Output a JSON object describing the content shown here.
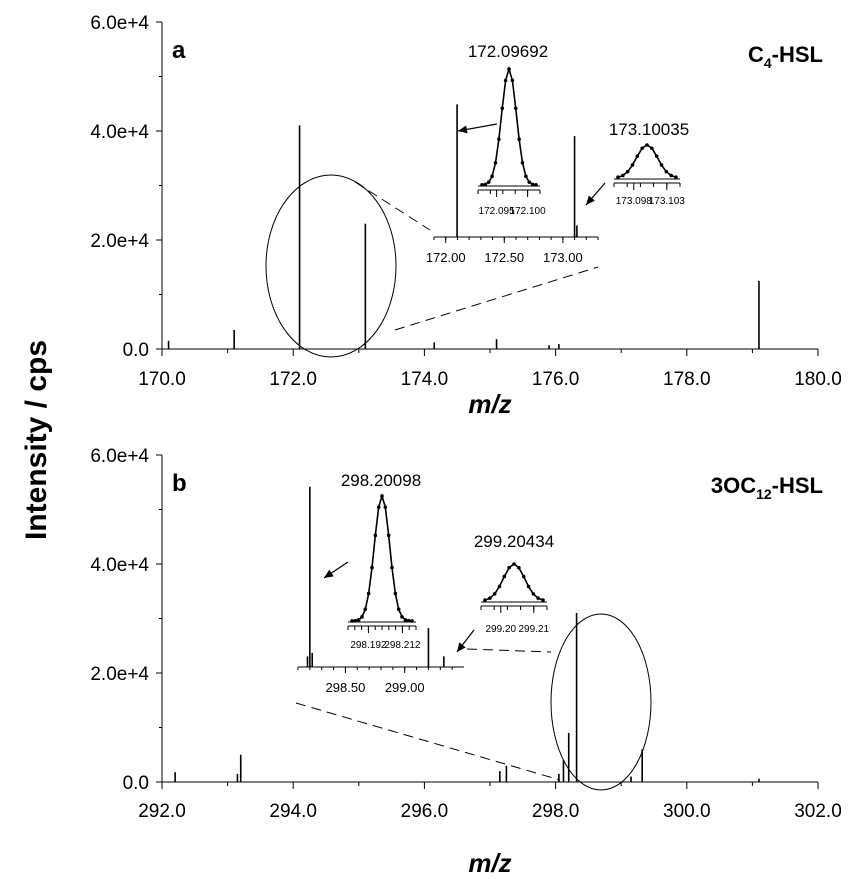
{
  "figure": {
    "ylabel": "Intensity / cps"
  },
  "chart_data": [
    {
      "type": "bar",
      "panel": "a",
      "compound": {
        "main": "C",
        "sub": "4",
        "suffix": "-HSL"
      },
      "xlabel": "m/z",
      "xlim": [
        170.0,
        180.0
      ],
      "ylim": [
        0,
        60000
      ],
      "x_ticks": [
        "170.0",
        "172.0",
        "174.0",
        "176.0",
        "178.0",
        "180.0"
      ],
      "y_ticks": [
        "0.0",
        "2.0e+4",
        "4.0e+4",
        "6.0e+4"
      ],
      "peaks": [
        {
          "x": 170.1,
          "y": 1500
        },
        {
          "x": 171.1,
          "y": 3500
        },
        {
          "x": 172.097,
          "y": 41000
        },
        {
          "x": 173.1,
          "y": 23000
        },
        {
          "x": 174.15,
          "y": 1200
        },
        {
          "x": 175.1,
          "y": 1800
        },
        {
          "x": 175.9,
          "y": 700
        },
        {
          "x": 176.05,
          "y": 900
        },
        {
          "x": 179.1,
          "y": 12500
        }
      ],
      "zoom": {
        "xlim": [
          171.9,
          173.3
        ],
        "ylim": [
          0,
          60000
        ],
        "x_ticks": [
          "172.00",
          "172.50",
          "173.00"
        ],
        "peaks": [
          {
            "x": 172.097,
            "y": 46000
          },
          {
            "x": 173.1,
            "y": 35000
          },
          {
            "x": 173.12,
            "y": 4000
          }
        ]
      },
      "peak_insets": [
        {
          "label": "172.09692",
          "ticks": [
            "172.095",
            "172.100"
          ]
        },
        {
          "label": "173.10035",
          "ticks": [
            "173.098",
            "173.103"
          ]
        }
      ]
    },
    {
      "type": "bar",
      "panel": "b",
      "compound": {
        "main": "3OC",
        "sub": "12",
        "suffix": "-HSL"
      },
      "xlabel": "m/z",
      "xlim": [
        292.0,
        302.0
      ],
      "ylim": [
        0,
        60000
      ],
      "x_ticks": [
        "292.0",
        "294.0",
        "296.0",
        "298.0",
        "300.0",
        "302.0"
      ],
      "y_ticks": [
        "0.0",
        "2.0e+4",
        "4.0e+4",
        "6.0e+4"
      ],
      "peaks": [
        {
          "x": 292.2,
          "y": 1800
        },
        {
          "x": 293.15,
          "y": 1500
        },
        {
          "x": 293.2,
          "y": 5000
        },
        {
          "x": 297.15,
          "y": 2000
        },
        {
          "x": 297.25,
          "y": 3000
        },
        {
          "x": 298.05,
          "y": 1500
        },
        {
          "x": 298.12,
          "y": 4000
        },
        {
          "x": 298.2,
          "y": 9000
        },
        {
          "x": 298.32,
          "y": 31000
        },
        {
          "x": 299.15,
          "y": 1000
        },
        {
          "x": 299.32,
          "y": 6000
        },
        {
          "x": 301.1,
          "y": 600
        }
      ],
      "zoom": {
        "xlim": [
          298.1,
          299.5
        ],
        "ylim": [
          0,
          60000
        ],
        "x_ticks": [
          "298.50",
          "299.00"
        ],
        "peaks": [
          {
            "x": 298.18,
            "y": 3000
          },
          {
            "x": 298.2,
            "y": 51000
          },
          {
            "x": 298.22,
            "y": 4000
          },
          {
            "x": 299.2,
            "y": 11000
          },
          {
            "x": 299.33,
            "y": 3000
          }
        ]
      },
      "peak_insets": [
        {
          "label": "298.20098",
          "ticks": [
            "298.192",
            "298.212"
          ]
        },
        {
          "label": "299.20434",
          "ticks": [
            "299.20",
            "299.21"
          ]
        }
      ]
    }
  ]
}
